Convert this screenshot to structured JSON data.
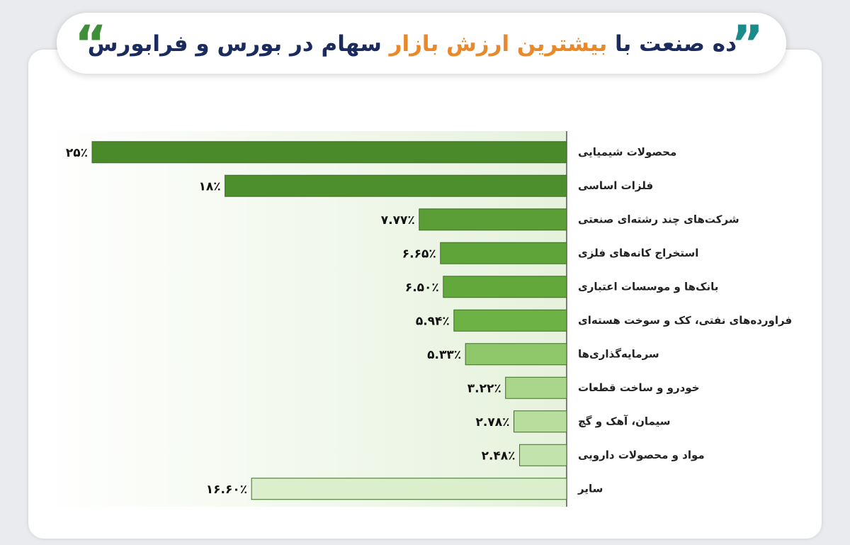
{
  "chart_data": {
    "type": "bar",
    "orientation": "horizontal",
    "title_parts": [
      "ده صنعت با",
      "بیشترین ارزش بازار",
      "سهام در بورس و فرابورس"
    ],
    "categories": [
      "محصولات شیمیایی",
      "فلزات اساسی",
      "شرکت‌های چند رشته‌ای صنعتی",
      "استخراج کانه‌های فلزی",
      "بانک‌ها و موسسات اعتباری",
      "فراورده‌های نفتی، کک و سوخت هسته‌ای",
      "سرمایه‌گذاری‌ها",
      "خودرو و ساخت قطعات",
      "سیمان، آهک و گچ",
      "مواد و محصولات دارویی",
      "سایر"
    ],
    "values": [
      25,
      18,
      7.77,
      6.65,
      6.5,
      5.94,
      5.33,
      3.22,
      2.78,
      2.48,
      16.6
    ],
    "value_labels": [
      "۲۵٪",
      "۱۸٪",
      "۷.۷۷٪",
      "۶.۶۵٪",
      "۶.۵۰٪",
      "۵.۹۴٪",
      "۵.۳۳٪",
      "۳.۲۲٪",
      "۲.۷۸٪",
      "۲.۴۸٪",
      "۱۶.۶۰٪"
    ],
    "colors": [
      "#4a8a2a",
      "#4e8f2d",
      "#5a9e35",
      "#5fa438",
      "#62a83b",
      "#6db244",
      "#8fc86a",
      "#a9d68b",
      "#b8de9e",
      "#c3e3ac",
      "#dcefcd"
    ],
    "xlim": [
      0,
      25
    ]
  }
}
